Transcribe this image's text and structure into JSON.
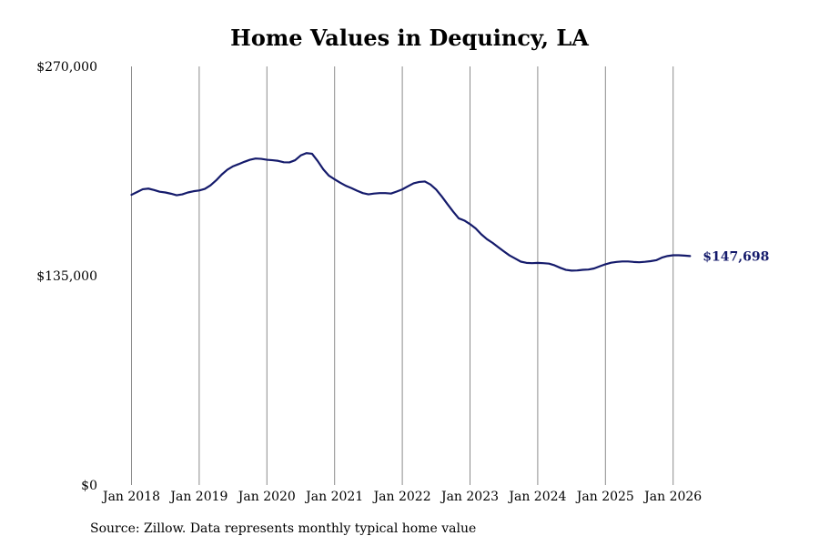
{
  "chart_data": {
    "type": "line",
    "title": "Home Values in Dequincy, LA",
    "xlabel": "",
    "ylabel": "",
    "ylim": [
      0,
      270000
    ],
    "xlim": [
      "2018-01",
      "2026-07"
    ],
    "y_ticks": [
      "$270,000",
      "$135,000",
      "$0"
    ],
    "y_tick_values": [
      270000,
      135000,
      0
    ],
    "x_ticks": [
      "Jan 2018",
      "Jan 2019",
      "Jan 2020",
      "Jan 2021",
      "Jan 2022",
      "Jan 2023",
      "Jan 2024",
      "Jan 2025",
      "Jan 2026"
    ],
    "x_tick_dates": [
      "2018-01",
      "2019-01",
      "2020-01",
      "2021-01",
      "2022-01",
      "2023-01",
      "2024-01",
      "2025-01",
      "2026-01"
    ],
    "grid": "vertical",
    "line_color": "#141a6b",
    "end_label": "$147,698",
    "series": [
      {
        "points": [
          [
            "2018-01",
            187200
          ],
          [
            "2018-02",
            189000
          ],
          [
            "2018-03",
            190800
          ],
          [
            "2018-04",
            191200
          ],
          [
            "2018-05",
            190300
          ],
          [
            "2018-06",
            189200
          ],
          [
            "2018-07",
            188700
          ],
          [
            "2018-08",
            187900
          ],
          [
            "2018-09",
            186900
          ],
          [
            "2018-10",
            187500
          ],
          [
            "2018-11",
            188700
          ],
          [
            "2018-12",
            189500
          ],
          [
            "2019-01",
            190000
          ],
          [
            "2019-02",
            191000
          ],
          [
            "2019-03",
            193300
          ],
          [
            "2019-04",
            196500
          ],
          [
            "2019-05",
            200300
          ],
          [
            "2019-06",
            203400
          ],
          [
            "2019-07",
            205600
          ],
          [
            "2019-08",
            207000
          ],
          [
            "2019-09",
            208500
          ],
          [
            "2019-10",
            209800
          ],
          [
            "2019-11",
            210600
          ],
          [
            "2019-12",
            210400
          ],
          [
            "2020-01",
            209800
          ],
          [
            "2020-02",
            209500
          ],
          [
            "2020-03",
            209100
          ],
          [
            "2020-04",
            208200
          ],
          [
            "2020-05",
            208100
          ],
          [
            "2020-06",
            209500
          ],
          [
            "2020-07",
            212600
          ],
          [
            "2020-08",
            214100
          ],
          [
            "2020-09",
            213700
          ],
          [
            "2020-10",
            209000
          ],
          [
            "2020-11",
            203600
          ],
          [
            "2020-12",
            199500
          ],
          [
            "2021-01",
            197200
          ],
          [
            "2021-02",
            195000
          ],
          [
            "2021-03",
            193000
          ],
          [
            "2021-04",
            191500
          ],
          [
            "2021-05",
            189800
          ],
          [
            "2021-06",
            188300
          ],
          [
            "2021-07",
            187500
          ],
          [
            "2021-08",
            188000
          ],
          [
            "2021-09",
            188300
          ],
          [
            "2021-10",
            188300
          ],
          [
            "2021-11",
            188000
          ],
          [
            "2021-12",
            189300
          ],
          [
            "2022-01",
            190700
          ],
          [
            "2022-02",
            192700
          ],
          [
            "2022-03",
            194600
          ],
          [
            "2022-04",
            195500
          ],
          [
            "2022-05",
            195800
          ],
          [
            "2022-06",
            193800
          ],
          [
            "2022-07",
            190600
          ],
          [
            "2022-08",
            186100
          ],
          [
            "2022-09",
            181200
          ],
          [
            "2022-10",
            176400
          ],
          [
            "2022-11",
            172000
          ],
          [
            "2022-12",
            170600
          ],
          [
            "2023-01",
            168300
          ],
          [
            "2023-02",
            165500
          ],
          [
            "2023-03",
            161700
          ],
          [
            "2023-04",
            158600
          ],
          [
            "2023-05",
            156200
          ],
          [
            "2023-06",
            153400
          ],
          [
            "2023-07",
            150700
          ],
          [
            "2023-08",
            148100
          ],
          [
            "2023-09",
            146100
          ],
          [
            "2023-10",
            144100
          ],
          [
            "2023-11",
            143300
          ],
          [
            "2023-12",
            143100
          ],
          [
            "2024-01",
            143300
          ],
          [
            "2024-02",
            143100
          ],
          [
            "2024-03",
            142800
          ],
          [
            "2024-04",
            141700
          ],
          [
            "2024-05",
            140100
          ],
          [
            "2024-06",
            138800
          ],
          [
            "2024-07",
            138300
          ],
          [
            "2024-08",
            138400
          ],
          [
            "2024-09",
            138800
          ],
          [
            "2024-10",
            139000
          ],
          [
            "2024-11",
            139700
          ],
          [
            "2024-12",
            141100
          ],
          [
            "2025-01",
            142400
          ],
          [
            "2025-02",
            143400
          ],
          [
            "2025-03",
            143900
          ],
          [
            "2025-04",
            144200
          ],
          [
            "2025-05",
            144200
          ],
          [
            "2025-06",
            143900
          ],
          [
            "2025-07",
            143700
          ],
          [
            "2025-08",
            144000
          ],
          [
            "2025-09",
            144400
          ],
          [
            "2025-10",
            145000
          ],
          [
            "2025-11",
            146700
          ],
          [
            "2025-12",
            147700
          ],
          [
            "2026-01",
            148200
          ],
          [
            "2026-02",
            148200
          ],
          [
            "2026-03",
            148000
          ],
          [
            "2026-04",
            147698
          ]
        ]
      }
    ],
    "source": "Source: Zillow. Data represents monthly typical home value"
  }
}
